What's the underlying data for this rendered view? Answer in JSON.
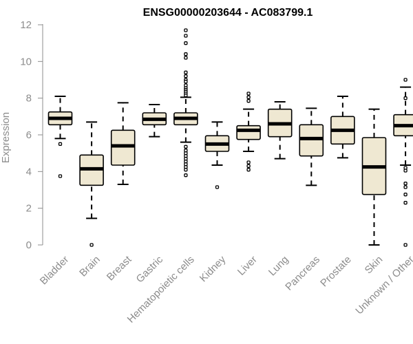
{
  "chart_data": {
    "type": "boxplot",
    "title": "ENSG00000203644 - AC083799.1",
    "ylabel": "Expression",
    "xlabel": "",
    "ylim": [
      0,
      12
    ],
    "yticks": [
      0,
      2,
      4,
      6,
      8,
      10,
      12
    ],
    "grid": false,
    "box_color": "#efe8d2",
    "categories": [
      "Bladder",
      "Brain",
      "Breast",
      "Gastric",
      "Hematopoietic cells",
      "Kidney",
      "Liver",
      "Lung",
      "Pancreas",
      "Prostate",
      "Skin",
      "Unknown / Other"
    ],
    "boxes": [
      {
        "min": 5.8,
        "q1": 6.55,
        "median": 6.9,
        "q3": 7.25,
        "max": 8.1,
        "outliers": [
          5.5,
          3.75
        ]
      },
      {
        "min": 1.45,
        "q1": 3.25,
        "median": 4.15,
        "q3": 4.9,
        "max": 6.7,
        "outliers": [
          0.0
        ]
      },
      {
        "min": 3.3,
        "q1": 4.35,
        "median": 5.4,
        "q3": 6.25,
        "max": 7.75,
        "outliers": []
      },
      {
        "min": 5.9,
        "q1": 6.55,
        "median": 6.85,
        "q3": 7.2,
        "max": 7.65,
        "outliers": []
      },
      {
        "min": 5.6,
        "q1": 6.55,
        "median": 6.9,
        "q3": 7.2,
        "max": 8.05,
        "outliers": [
          11.7,
          11.4,
          11.0,
          10.4,
          10.2,
          9.4,
          9.2,
          9.0,
          8.9,
          8.7,
          8.55,
          8.45,
          8.35,
          8.25,
          8.15,
          5.35,
          5.15,
          5.0,
          4.85,
          4.7,
          4.55,
          4.4,
          4.25,
          4.1,
          3.8
        ]
      },
      {
        "min": 4.35,
        "q1": 5.1,
        "median": 5.5,
        "q3": 5.95,
        "max": 6.7,
        "outliers": [
          3.15
        ]
      },
      {
        "min": 5.1,
        "q1": 5.75,
        "median": 6.25,
        "q3": 6.5,
        "max": 7.4,
        "outliers": [
          8.25,
          8.05,
          7.85,
          4.5,
          4.3,
          4.1
        ]
      },
      {
        "min": 4.7,
        "q1": 5.9,
        "median": 6.6,
        "q3": 7.4,
        "max": 7.8,
        "outliers": []
      },
      {
        "min": 3.25,
        "q1": 4.85,
        "median": 5.8,
        "q3": 6.55,
        "max": 7.45,
        "outliers": []
      },
      {
        "min": 4.75,
        "q1": 5.5,
        "median": 6.25,
        "q3": 7.0,
        "max": 8.1,
        "outliers": []
      },
      {
        "min": 0.0,
        "q1": 2.75,
        "median": 4.25,
        "q3": 5.85,
        "max": 7.4,
        "outliers": []
      },
      {
        "min": 4.35,
        "q1": 5.95,
        "median": 6.5,
        "q3": 7.1,
        "max": 8.6,
        "outliers": [
          9.0,
          8.0,
          4.2,
          4.05,
          3.35,
          3.15,
          2.75,
          2.3,
          0.0
        ]
      }
    ]
  }
}
